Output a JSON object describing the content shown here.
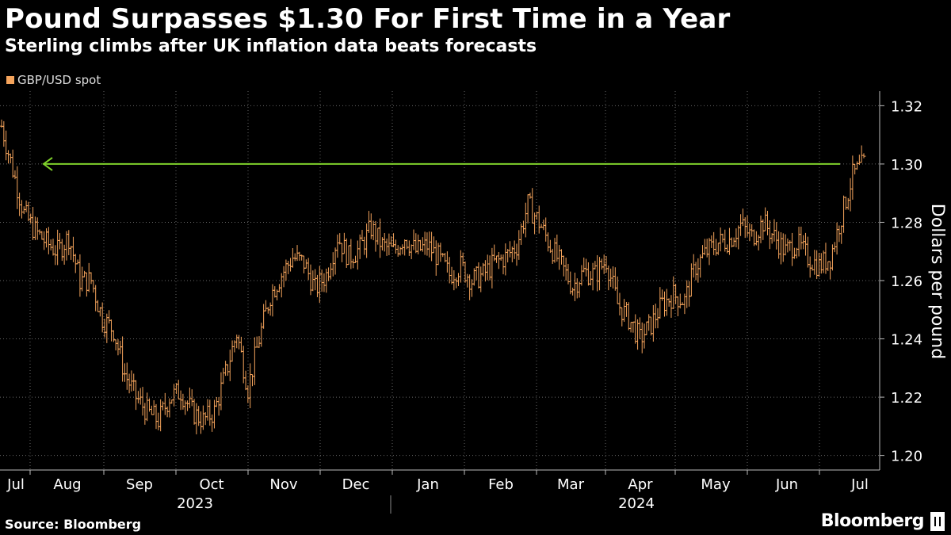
{
  "header": {
    "title": "Pound Surpasses $1.30 For First Time in a Year",
    "subtitle": "Sterling climbs after UK inflation data beats forecasts"
  },
  "footer": {
    "source": "Source: Bloomberg",
    "brand": "Bloomberg"
  },
  "colors": {
    "series": "#f5a45c",
    "arrow": "#7fd12b",
    "grid": "#666666",
    "background": "#000000"
  },
  "chart_data": {
    "type": "line",
    "style": "ohlc-bars",
    "series": [
      {
        "name": "GBP/USD spot",
        "weekly_close": [
          1.313,
          1.298,
          1.283,
          1.277,
          1.273,
          1.27,
          1.275,
          1.26,
          1.26,
          1.247,
          1.243,
          1.228,
          1.22,
          1.215,
          1.212,
          1.22,
          1.222,
          1.215,
          1.212,
          1.215,
          1.228,
          1.242,
          1.223,
          1.24,
          1.255,
          1.262,
          1.268,
          1.266,
          1.257,
          1.262,
          1.275,
          1.268,
          1.271,
          1.278,
          1.272,
          1.27,
          1.275,
          1.27,
          1.272,
          1.268,
          1.262,
          1.265,
          1.26,
          1.262,
          1.266,
          1.268,
          1.272,
          1.286,
          1.28,
          1.272,
          1.265,
          1.258,
          1.263,
          1.262,
          1.267,
          1.252,
          1.247,
          1.24,
          1.245,
          1.252,
          1.255,
          1.253,
          1.265,
          1.27,
          1.273,
          1.274,
          1.279,
          1.275,
          1.28,
          1.275,
          1.27,
          1.273,
          1.268,
          1.265,
          1.268,
          1.282,
          1.296,
          1.3
        ]
      }
    ],
    "xlabels": [
      "Jul",
      "Aug",
      "Sep",
      "Oct",
      "Nov",
      "Dec",
      "Jan",
      "Feb",
      "Mar",
      "Apr",
      "May",
      "Jun",
      "Jul"
    ],
    "year_labels": [
      "2023",
      "2024"
    ],
    "ylabel": "Dollars per pound",
    "yticks": [
      1.2,
      1.22,
      1.24,
      1.26,
      1.28,
      1.3,
      1.32
    ],
    "ylim": [
      1.195,
      1.325
    ],
    "legend_position": "top-left",
    "grid": "vertical and horizontal dotted",
    "annotation": {
      "type": "horizontal-arrow",
      "level": 1.3,
      "from": "Jul 2024",
      "to": "Jul 2023"
    }
  }
}
